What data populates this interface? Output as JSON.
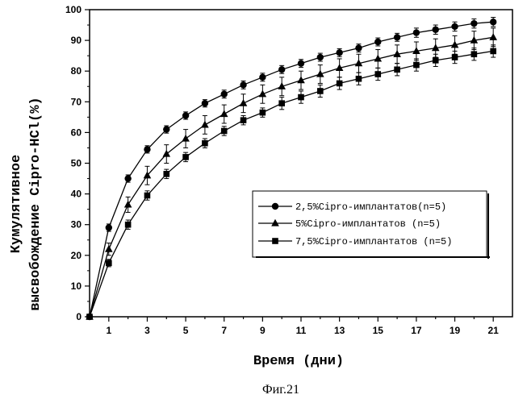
{
  "chart_data": {
    "type": "line",
    "xlabel": "Время (дни)",
    "ylabel_line1": "Кумулятивное",
    "ylabel_line2": "высвобождение Cipro-HCl(%)",
    "caption": "Фиг.21",
    "xlim": [
      0,
      22
    ],
    "ylim": [
      0,
      100
    ],
    "x_ticks": [
      1,
      3,
      5,
      7,
      9,
      11,
      13,
      15,
      17,
      19,
      21
    ],
    "y_ticks": [
      0,
      10,
      20,
      30,
      40,
      50,
      60,
      70,
      80,
      90,
      100
    ],
    "grid": false,
    "legend_position": "lower-right",
    "series": [
      {
        "name": "2,5%Cipro-имплантатов(n=5)",
        "marker": "circle",
        "x": [
          0,
          1,
          2,
          3,
          4,
          5,
          6,
          7,
          8,
          9,
          10,
          11,
          12,
          13,
          14,
          15,
          16,
          17,
          18,
          19,
          20,
          21
        ],
        "values": [
          0,
          29,
          45,
          54.5,
          61,
          65.5,
          69.5,
          72.5,
          75.5,
          78,
          80.5,
          82.5,
          84.5,
          86,
          87.5,
          89.5,
          91,
          92.5,
          93.5,
          94.5,
          95.5,
          96
        ],
        "errors": [
          0,
          1.2,
          1.2,
          1.2,
          1.2,
          1.2,
          1.2,
          1.3,
          1.3,
          1.3,
          1.3,
          1.3,
          1.3,
          1.3,
          1.3,
          1.3,
          1.3,
          1.5,
          1.5,
          1.5,
          1.5,
          1.5
        ]
      },
      {
        "name": "5%Cipro-имплантатов (n=5)",
        "marker": "triangle",
        "x": [
          0,
          1,
          2,
          3,
          4,
          5,
          6,
          7,
          8,
          9,
          10,
          11,
          12,
          13,
          14,
          15,
          16,
          17,
          18,
          19,
          20,
          21
        ],
        "values": [
          0,
          22,
          36.5,
          46,
          53,
          58,
          62.5,
          66,
          69.5,
          72.5,
          75,
          77,
          79,
          81,
          82.5,
          84,
          85.5,
          86.5,
          87.5,
          88.5,
          90,
          91
        ],
        "errors": [
          0,
          2,
          2.5,
          3,
          3,
          3,
          3,
          3,
          3,
          3,
          3,
          3,
          3,
          3,
          3,
          3,
          3,
          3,
          3,
          3,
          3,
          3
        ]
      },
      {
        "name": "7,5%Cipro-имплантатов (n=5)",
        "marker": "square",
        "x": [
          0,
          1,
          2,
          3,
          4,
          5,
          6,
          7,
          8,
          9,
          10,
          11,
          12,
          13,
          14,
          15,
          16,
          17,
          18,
          19,
          20,
          21
        ],
        "values": [
          0,
          17.5,
          30,
          39.5,
          46.5,
          52,
          56.5,
          60.5,
          64,
          66.5,
          69.5,
          71.5,
          73.5,
          76,
          77.5,
          79,
          80.5,
          82,
          83.5,
          84.5,
          85.5,
          86.5
        ],
        "errors": [
          0,
          1.2,
          1.5,
          1.5,
          1.5,
          1.5,
          1.5,
          1.5,
          1.5,
          1.5,
          2,
          2,
          2,
          2,
          2,
          2,
          2,
          2,
          2,
          2,
          2,
          2
        ]
      }
    ]
  }
}
